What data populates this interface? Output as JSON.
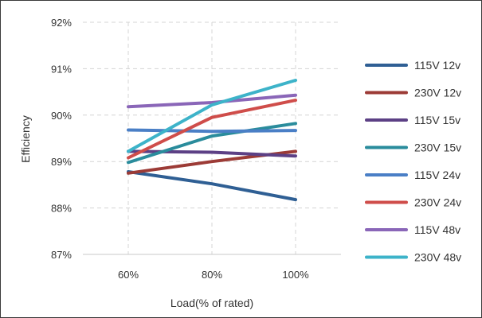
{
  "chart_data": {
    "type": "line",
    "xlabel": "Load(% of rated)",
    "ylabel": "Efficiency",
    "categories": [
      "60%",
      "80%",
      "100%"
    ],
    "ylim": [
      87,
      92
    ],
    "yticks": [
      87,
      88,
      89,
      90,
      91,
      92
    ],
    "ytick_labels": [
      "87%",
      "88%",
      "89%",
      "90%",
      "91%",
      "92%"
    ],
    "grid": true,
    "legend_position": "right",
    "series": [
      {
        "name": "115V 12v",
        "color": "#2f5f94",
        "values": [
          88.78,
          88.52,
          88.18
        ]
      },
      {
        "name": "230V 12v",
        "color": "#9c3b36",
        "values": [
          88.75,
          89.0,
          89.22
        ]
      },
      {
        "name": "115V 15v",
        "color": "#5c4085",
        "values": [
          89.22,
          89.2,
          89.12
        ]
      },
      {
        "name": "230V 15v",
        "color": "#2a8c9c",
        "values": [
          88.98,
          89.55,
          89.82
        ]
      },
      {
        "name": "115V 24v",
        "color": "#4a7fc6",
        "values": [
          89.68,
          89.65,
          89.67
        ]
      },
      {
        "name": "230V 24v",
        "color": "#cf4d4a",
        "values": [
          89.08,
          89.95,
          90.32
        ]
      },
      {
        "name": "115V 48v",
        "color": "#8a66b8",
        "values": [
          90.18,
          90.27,
          90.43
        ]
      },
      {
        "name": "230V 48v",
        "color": "#3db3c9",
        "values": [
          89.22,
          90.22,
          90.75
        ]
      }
    ]
  }
}
